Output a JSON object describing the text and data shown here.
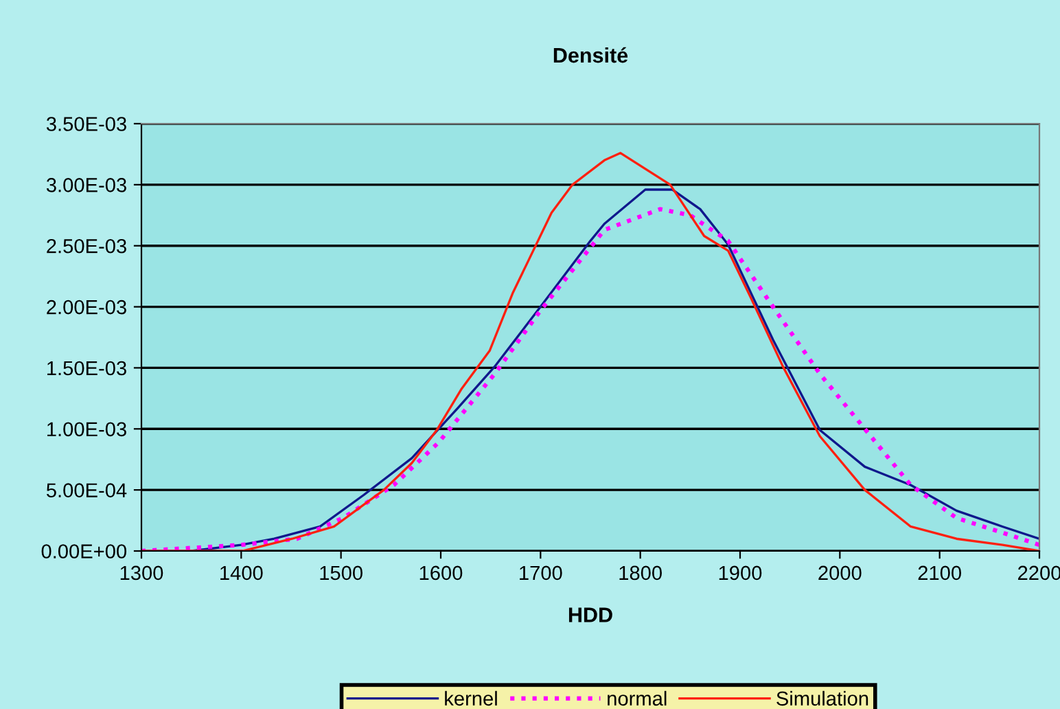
{
  "chart_data": {
    "type": "line",
    "title": "Densité",
    "xlabel": "HDD",
    "xlim": [
      1300,
      2200
    ],
    "xticks": [
      1300,
      1400,
      1500,
      1600,
      1700,
      1800,
      1900,
      2000,
      2100,
      2200
    ],
    "ylim": [
      0,
      0.0035
    ],
    "yticks": [
      {
        "value": 0,
        "label": "0.00E+00"
      },
      {
        "value": 0.0005,
        "label": "5.00E-04"
      },
      {
        "value": 0.001,
        "label": "1.00E-03"
      },
      {
        "value": 0.0015,
        "label": "1.50E-03"
      },
      {
        "value": 0.002,
        "label": "2.00E-03"
      },
      {
        "value": 0.0025,
        "label": "2.50E-03"
      },
      {
        "value": 0.003,
        "label": "3.00E-03"
      },
      {
        "value": 0.0035,
        "label": "3.50E-03"
      }
    ],
    "grid": "y",
    "legend": "bottom",
    "marker": "none",
    "series": [
      {
        "name": "kernel",
        "color": "#10188c",
        "line_style": "solid",
        "x": [
          1300,
          1350,
          1400,
          1433,
          1479,
          1523,
          1571,
          1617,
          1654,
          1700,
          1750,
          1764,
          1805,
          1832,
          1860,
          1888,
          1933,
          1980,
          2025,
          2071,
          2117,
          2163,
          2200
        ],
        "values": [
          0,
          0,
          5e-05,
          0.0001,
          0.0002,
          0.00046,
          0.00076,
          0.00117,
          0.00151,
          0.002,
          0.00254,
          0.00268,
          0.00296,
          0.00296,
          0.0028,
          0.00251,
          0.00173,
          0.00099,
          0.00069,
          0.00054,
          0.00033,
          0.0002,
          0.0001
        ]
      },
      {
        "name": "normal",
        "color": "#ff00ff",
        "line_style": "dotted",
        "x": [
          1300,
          1400,
          1456,
          1502,
          1553,
          1598,
          1654,
          1700,
          1764,
          1820,
          1850,
          1888,
          1933,
          1980,
          2025,
          2071,
          2117,
          2163,
          2200
        ],
        "values": [
          0,
          5e-05,
          0.0001,
          0.00027,
          0.00054,
          0.00089,
          0.00145,
          0.00197,
          0.00263,
          0.0028,
          0.00275,
          0.00254,
          0.002,
          0.00145,
          0.001,
          0.00054,
          0.00027,
          0.00015,
          5e-05
        ]
      },
      {
        "name": "Simulation",
        "color": "#ff2010",
        "line_style": "solid",
        "x": [
          1300,
          1401,
          1451,
          1493,
          1543,
          1571,
          1596,
          1621,
          1649,
          1672,
          1711,
          1732,
          1764,
          1780,
          1830,
          1864,
          1888,
          1911,
          1943,
          1980,
          2025,
          2071,
          2117,
          2163,
          2200
        ],
        "values": [
          0,
          0,
          0.0001,
          0.0002,
          0.0005,
          0.00072,
          0.00099,
          0.00133,
          0.00164,
          0.00211,
          0.00277,
          0.003,
          0.0032,
          0.00326,
          0.003,
          0.00258,
          0.00246,
          0.00207,
          0.00151,
          0.00094,
          0.0005,
          0.0002,
          0.0001,
          5e-05,
          0
        ]
      }
    ]
  }
}
